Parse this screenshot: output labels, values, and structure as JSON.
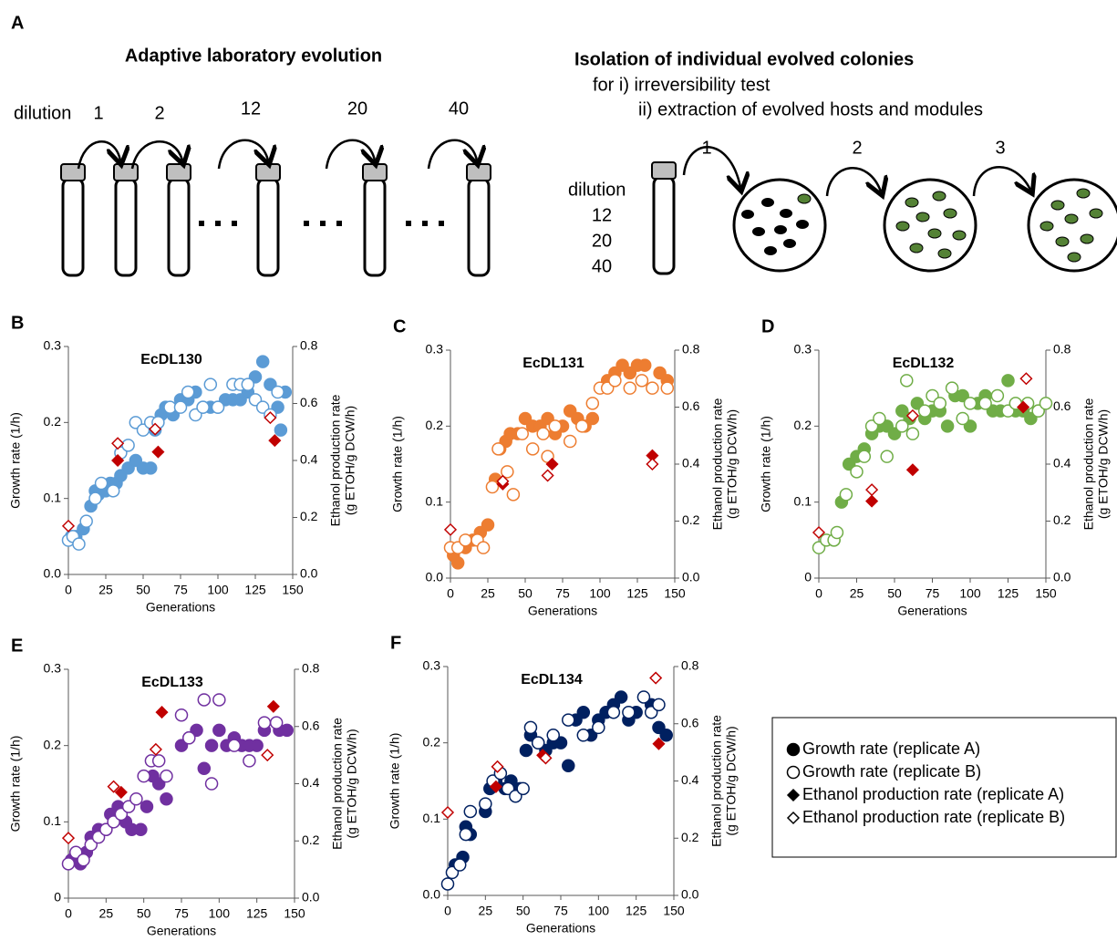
{
  "diagram": {
    "panel_label": "A",
    "left": {
      "title": "Adaptive laboratory evolution",
      "dilution_label": "dilution",
      "steps": [
        "1",
        "2",
        "12",
        "20",
        "40"
      ]
    },
    "right": {
      "title": "Isolation of individual evolved colonies",
      "purposes": [
        "for i) irreversibility test",
        "ii) extraction of evolved hosts and modules"
      ],
      "steps": [
        "1",
        "2",
        "3"
      ],
      "dilution_label": "dilution",
      "dilutions": [
        "12",
        "20",
        "40"
      ]
    }
  },
  "legend": {
    "entries": [
      {
        "label": "Growth rate (replicate A)",
        "marker": "circle",
        "filled": true
      },
      {
        "label": "Growth rate (replicate B)",
        "marker": "circle",
        "filled": false
      },
      {
        "label": "Ethanol production rate (replicate A)",
        "marker": "diamond",
        "filled": true
      },
      {
        "label": "Ethanol production rate (replicate B)",
        "marker": "diamond",
        "filled": false
      }
    ]
  },
  "chart_data": [
    {
      "type": "scatter",
      "panel_label": "B",
      "title": "EcDL130",
      "x_label": "Generations",
      "y_label": "Growth rate (1/h)",
      "y2_label": [
        "Ethanol production rate",
        "(g ETOH/g DCW/h)"
      ],
      "xlim": [
        0,
        150
      ],
      "xticks": [
        0,
        25,
        50,
        75,
        100,
        125,
        150
      ],
      "ylim": [
        0,
        0.3
      ],
      "yticks": [
        {
          "value": 0,
          "label": "0.0"
        },
        0.1,
        0.2,
        0.3
      ],
      "y2lim": [
        0,
        0.8
      ],
      "y2ticks": [
        {
          "value": 0,
          "label": "0.0"
        },
        0.2,
        0.4,
        0.6,
        0.8
      ],
      "series": [
        {
          "marker": "circle",
          "filled": true,
          "color": "#5b9bd5",
          "x": [
            2,
            5,
            10,
            15,
            18,
            20,
            25,
            28,
            32,
            35,
            40,
            45,
            50,
            55,
            58,
            62,
            65,
            70,
            75,
            80,
            85,
            90,
            95,
            100,
            105,
            110,
            115,
            120,
            125,
            130,
            135,
            140,
            142,
            145
          ],
          "values": [
            0.05,
            0.05,
            0.06,
            0.09,
            0.11,
            0.105,
            0.11,
            0.12,
            0.12,
            0.13,
            0.14,
            0.15,
            0.14,
            0.14,
            0.19,
            0.21,
            0.22,
            0.21,
            0.23,
            0.23,
            0.24,
            0.22,
            0.22,
            0.22,
            0.23,
            0.23,
            0.23,
            0.24,
            0.26,
            0.28,
            0.25,
            0.22,
            0.19,
            0.24
          ]
        },
        {
          "marker": "circle",
          "filled": false,
          "color": "#5b9bd5",
          "x": [
            0,
            3,
            7,
            12,
            18,
            22,
            30,
            35,
            40,
            45,
            50,
            55,
            60,
            68,
            75,
            80,
            85,
            90,
            95,
            100,
            110,
            115,
            120,
            125,
            130,
            135,
            140
          ],
          "values": [
            0.045,
            0.05,
            0.04,
            0.07,
            0.1,
            0.12,
            0.11,
            0.16,
            0.17,
            0.2,
            0.19,
            0.2,
            0.2,
            0.22,
            0.22,
            0.24,
            0.21,
            0.22,
            0.25,
            0.22,
            0.25,
            0.25,
            0.25,
            0.23,
            0.22,
            0.21,
            0.24
          ]
        },
        {
          "marker": "diamond",
          "filled": true,
          "color": "#c00000",
          "axis": "y2",
          "x": [
            33,
            60,
            138
          ],
          "values": [
            0.4,
            0.43,
            0.47
          ]
        },
        {
          "marker": "diamond",
          "filled": false,
          "color": "#c00000",
          "axis": "y2",
          "x": [
            0,
            33,
            58,
            135
          ],
          "values": [
            0.17,
            0.46,
            0.51,
            0.55
          ]
        }
      ]
    },
    {
      "type": "scatter",
      "panel_label": "C",
      "title": "EcDL131",
      "x_label": "Generations",
      "y_label": "Growth rate (1/h)",
      "y2_label": [
        "Ethanol production rate",
        "(g ETOH/g DCW/h)"
      ],
      "xlim": [
        0,
        150
      ],
      "xticks": [
        0,
        25,
        50,
        75,
        100,
        125,
        150
      ],
      "ylim": [
        0,
        0.3
      ],
      "yticks": [
        {
          "value": 0,
          "label": "0.0"
        },
        0.1,
        0.2,
        0.3
      ],
      "y2lim": [
        0,
        0.8
      ],
      "y2ticks": [
        {
          "value": 0,
          "label": "0.0"
        },
        0.2,
        0.4,
        0.6,
        0.8
      ],
      "series": [
        {
          "marker": "circle",
          "filled": true,
          "color": "#ed7d31",
          "x": [
            2,
            5,
            10,
            15,
            20,
            25,
            30,
            33,
            37,
            40,
            45,
            50,
            55,
            60,
            65,
            70,
            75,
            80,
            85,
            90,
            95,
            105,
            110,
            115,
            120,
            125,
            130,
            140,
            145
          ],
          "values": [
            0.03,
            0.02,
            0.04,
            0.05,
            0.06,
            0.07,
            0.13,
            0.17,
            0.18,
            0.19,
            0.19,
            0.21,
            0.2,
            0.2,
            0.21,
            0.19,
            0.2,
            0.22,
            0.21,
            0.2,
            0.21,
            0.26,
            0.27,
            0.28,
            0.27,
            0.28,
            0.28,
            0.27,
            0.26
          ]
        },
        {
          "marker": "circle",
          "filled": false,
          "color": "#ed7d31",
          "x": [
            0,
            5,
            10,
            18,
            22,
            28,
            32,
            38,
            42,
            48,
            55,
            62,
            65,
            70,
            80,
            88,
            95,
            100,
            105,
            110,
            120,
            128,
            135,
            145
          ],
          "values": [
            0.04,
            0.04,
            0.05,
            0.05,
            0.04,
            0.12,
            0.17,
            0.14,
            0.11,
            0.19,
            0.17,
            0.19,
            0.16,
            0.2,
            0.18,
            0.2,
            0.23,
            0.25,
            0.25,
            0.26,
            0.25,
            0.26,
            0.25,
            0.25
          ]
        },
        {
          "marker": "diamond",
          "filled": true,
          "color": "#c00000",
          "axis": "y2",
          "x": [
            35,
            68,
            135
          ],
          "values": [
            0.33,
            0.4,
            0.43
          ]
        },
        {
          "marker": "diamond",
          "filled": false,
          "color": "#c00000",
          "axis": "y2",
          "x": [
            0,
            35,
            65,
            135
          ],
          "values": [
            0.17,
            0.34,
            0.36,
            0.4
          ]
        }
      ]
    },
    {
      "type": "scatter",
      "panel_label": "D",
      "title": "EcDL132",
      "x_label": "Generations",
      "y_label": "Growth rate (1/h)",
      "y2_label": [
        "Ethanol production rate",
        "(g ETOH/g DCW/h)"
      ],
      "xlim": [
        0,
        150
      ],
      "xticks": [
        0,
        25,
        50,
        75,
        100,
        125,
        150
      ],
      "ylim": [
        0,
        0.3
      ],
      "yticks": [
        0,
        0.1,
        0.2,
        0.3
      ],
      "y2lim": [
        0,
        0.8
      ],
      "y2ticks": [
        {
          "value": 0,
          "label": "0.0"
        },
        0.2,
        0.4,
        0.6,
        0.8
      ],
      "series": [
        {
          "marker": "circle",
          "filled": true,
          "color": "#70ad47",
          "x": [
            10,
            15,
            20,
            25,
            30,
            35,
            40,
            45,
            50,
            55,
            60,
            65,
            70,
            75,
            80,
            85,
            90,
            95,
            100,
            105,
            110,
            115,
            120,
            125,
            130,
            135,
            140,
            145
          ],
          "values": [
            0.05,
            0.1,
            0.15,
            0.16,
            0.17,
            0.19,
            0.2,
            0.2,
            0.19,
            0.22,
            0.21,
            0.23,
            0.21,
            0.22,
            0.22,
            0.2,
            0.24,
            0.24,
            0.2,
            0.23,
            0.24,
            0.22,
            0.22,
            0.26,
            0.22,
            0.22,
            0.21,
            0.22
          ]
        },
        {
          "marker": "circle",
          "filled": false,
          "color": "#70ad47",
          "x": [
            0,
            5,
            10,
            12,
            18,
            25,
            30,
            35,
            40,
            45,
            55,
            58,
            62,
            70,
            75,
            80,
            88,
            95,
            100,
            110,
            118,
            125,
            130,
            138,
            145,
            150
          ],
          "values": [
            0.04,
            0.05,
            0.05,
            0.06,
            0.11,
            0.14,
            0.16,
            0.2,
            0.21,
            0.16,
            0.2,
            0.26,
            0.19,
            0.22,
            0.24,
            0.23,
            0.25,
            0.21,
            0.23,
            0.23,
            0.24,
            0.22,
            0.23,
            0.23,
            0.22,
            0.23
          ]
        },
        {
          "marker": "diamond",
          "filled": true,
          "color": "#c00000",
          "axis": "y2",
          "x": [
            35,
            62,
            135
          ],
          "values": [
            0.27,
            0.38,
            0.6
          ]
        },
        {
          "marker": "diamond",
          "filled": false,
          "color": "#c00000",
          "axis": "y2",
          "x": [
            0,
            35,
            62,
            137
          ],
          "values": [
            0.16,
            0.31,
            0.57,
            0.7
          ]
        }
      ]
    },
    {
      "type": "scatter",
      "panel_label": "E",
      "title": "EcDL133",
      "x_label": "Generations",
      "y_label": "Growth rate (1/h)",
      "y2_label": [
        "Ethanol production rate",
        "(g ETOH/g DCW/h)"
      ],
      "xlim": [
        0,
        150
      ],
      "xticks": [
        0,
        25,
        50,
        75,
        100,
        125,
        150
      ],
      "ylim": [
        0,
        0.3
      ],
      "yticks": [
        0,
        0.1,
        0.2,
        0.3
      ],
      "y2lim": [
        0,
        0.8
      ],
      "y2ticks": [
        {
          "value": 0,
          "label": "0.0"
        },
        0.2,
        0.4,
        0.6,
        0.8
      ],
      "series": [
        {
          "marker": "circle",
          "filled": true,
          "color": "#7030a0",
          "x": [
            2,
            5,
            8,
            12,
            15,
            20,
            25,
            28,
            33,
            38,
            42,
            48,
            52,
            56,
            60,
            65,
            75,
            80,
            85,
            90,
            95,
            100,
            105,
            110,
            115,
            120,
            125,
            130,
            140,
            145
          ],
          "values": [
            0.05,
            0.05,
            0.045,
            0.06,
            0.08,
            0.09,
            0.09,
            0.11,
            0.12,
            0.1,
            0.09,
            0.09,
            0.12,
            0.16,
            0.15,
            0.13,
            0.2,
            0.21,
            0.22,
            0.17,
            0.2,
            0.22,
            0.2,
            0.21,
            0.2,
            0.2,
            0.2,
            0.22,
            0.22,
            0.22
          ]
        },
        {
          "marker": "circle",
          "filled": false,
          "color": "#7030a0",
          "x": [
            0,
            5,
            10,
            15,
            20,
            25,
            30,
            35,
            40,
            45,
            50,
            55,
            60,
            65,
            75,
            80,
            90,
            95,
            100,
            110,
            120,
            130,
            138
          ],
          "values": [
            0.045,
            0.06,
            0.05,
            0.07,
            0.08,
            0.09,
            0.1,
            0.11,
            0.12,
            0.13,
            0.16,
            0.18,
            0.18,
            0.16,
            0.24,
            0.21,
            0.26,
            0.15,
            0.26,
            0.2,
            0.18,
            0.23,
            0.23
          ]
        },
        {
          "marker": "diamond",
          "filled": true,
          "color": "#c00000",
          "axis": "y2",
          "x": [
            35,
            62,
            136
          ],
          "values": [
            0.37,
            0.65,
            0.67
          ]
        },
        {
          "marker": "diamond",
          "filled": false,
          "color": "#c00000",
          "axis": "y2",
          "x": [
            0,
            30,
            58,
            132
          ],
          "values": [
            0.21,
            0.39,
            0.52,
            0.5
          ]
        }
      ]
    },
    {
      "type": "scatter",
      "panel_label": "F",
      "title": "EcDL134",
      "x_label": "Generations",
      "y_label": "Growth rate (1/h)",
      "y2_label": [
        "Ethanol production rate",
        "(g ETOH/g DCW/h)"
      ],
      "xlim": [
        0,
        150
      ],
      "xticks": [
        0,
        25,
        50,
        75,
        100,
        125,
        150
      ],
      "ylim": [
        0,
        0.3
      ],
      "yticks": [
        {
          "value": 0,
          "label": "0.0"
        },
        0.1,
        0.2,
        0.3
      ],
      "y2lim": [
        0,
        0.8
      ],
      "y2ticks": [
        {
          "value": 0,
          "label": "0.0"
        },
        0.2,
        0.4,
        0.6,
        0.8
      ],
      "series": [
        {
          "marker": "circle",
          "filled": true,
          "color": "#002060",
          "x": [
            5,
            10,
            12,
            15,
            25,
            28,
            32,
            38,
            42,
            48,
            52,
            55,
            60,
            65,
            70,
            75,
            80,
            85,
            90,
            95,
            100,
            105,
            110,
            115,
            120,
            125,
            135,
            140,
            145
          ],
          "values": [
            0.04,
            0.05,
            0.09,
            0.08,
            0.11,
            0.14,
            0.15,
            0.14,
            0.15,
            0.14,
            0.19,
            0.21,
            0.2,
            0.19,
            0.2,
            0.2,
            0.17,
            0.23,
            0.24,
            0.21,
            0.23,
            0.24,
            0.25,
            0.26,
            0.23,
            0.24,
            0.25,
            0.22,
            0.21
          ]
        },
        {
          "marker": "circle",
          "filled": false,
          "color": "#002060",
          "x": [
            0,
            3,
            8,
            12,
            15,
            25,
            30,
            35,
            40,
            45,
            50,
            55,
            60,
            70,
            80,
            90,
            100,
            110,
            120,
            130,
            135,
            140
          ],
          "values": [
            0.015,
            0.03,
            0.04,
            0.08,
            0.11,
            0.12,
            0.15,
            0.16,
            0.14,
            0.13,
            0.14,
            0.22,
            0.2,
            0.21,
            0.23,
            0.21,
            0.22,
            0.24,
            0.24,
            0.26,
            0.24,
            0.25
          ]
        },
        {
          "marker": "diamond",
          "filled": true,
          "color": "#c00000",
          "axis": "y2",
          "x": [
            32,
            63,
            140
          ],
          "values": [
            0.38,
            0.49,
            0.53
          ]
        },
        {
          "marker": "diamond",
          "filled": false,
          "color": "#c00000",
          "axis": "y2",
          "x": [
            0,
            33,
            65,
            138
          ],
          "values": [
            0.29,
            0.45,
            0.48,
            0.76
          ]
        }
      ]
    }
  ]
}
